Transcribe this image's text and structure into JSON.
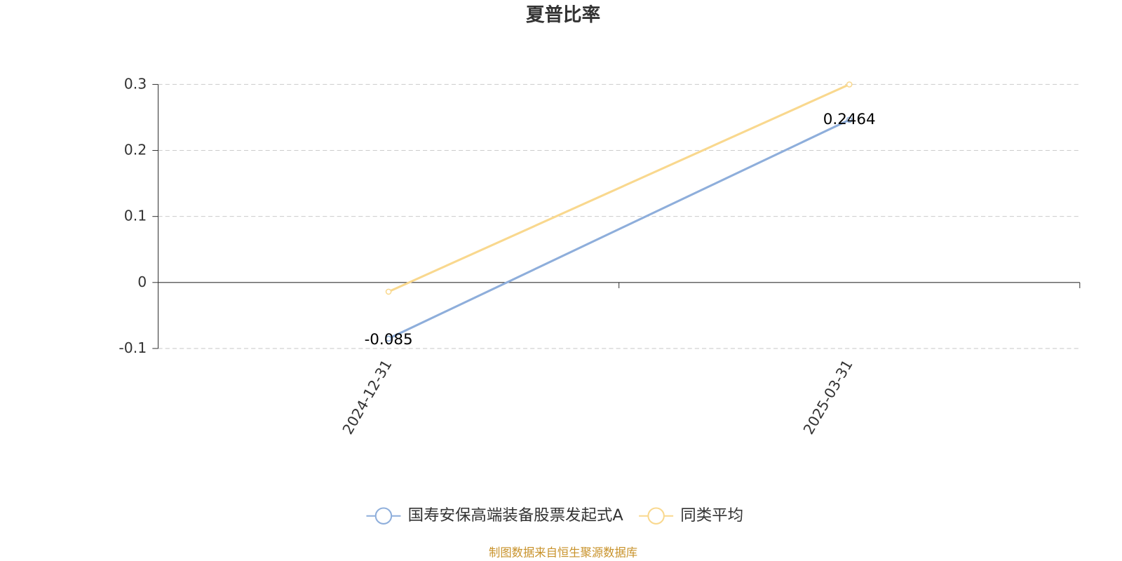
{
  "chart_data": {
    "type": "line",
    "title": "夏普比率",
    "categories": [
      "2024-12-31",
      "2025-03-31"
    ],
    "series": [
      {
        "name": "国寿安保高端装备股票发起式A",
        "color": "#8eaedb",
        "values": [
          -0.085,
          0.2464
        ],
        "data_labels": true
      },
      {
        "name": "同类平均",
        "color": "#f9d88e",
        "values": [
          -0.014,
          0.3
        ],
        "data_labels": false
      }
    ],
    "ylim": [
      -0.1,
      0.3
    ],
    "yticks": [
      -0.1,
      0,
      0.1,
      0.2,
      0.3
    ],
    "grid": true,
    "legend": "bottom",
    "source": "制图数据来自恒生聚源数据库"
  }
}
